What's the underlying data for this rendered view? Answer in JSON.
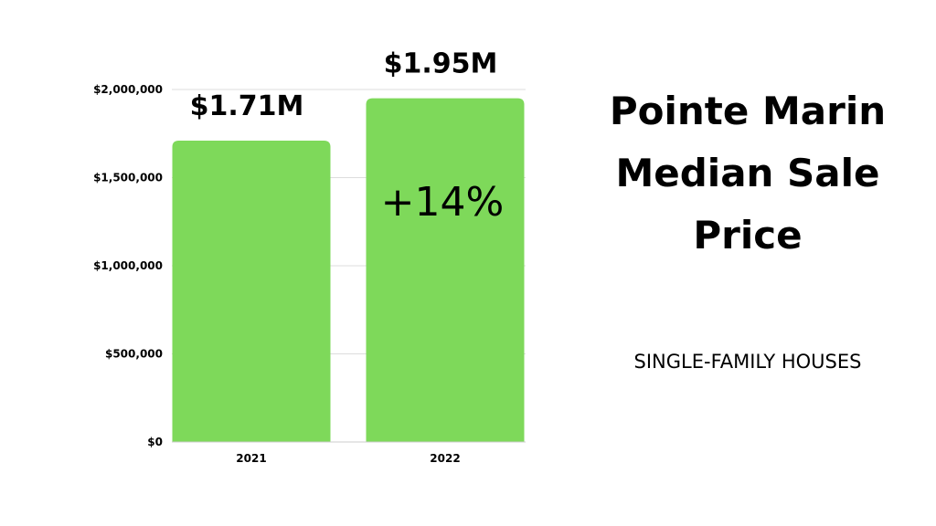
{
  "chart_data": {
    "type": "bar",
    "categories": [
      "2021",
      "2022"
    ],
    "values": [
      1710000,
      1950000
    ],
    "value_labels": [
      "$1.71M",
      "$1.95M"
    ],
    "annotation": "+14%",
    "title_lines": [
      "Pointe Marin",
      "Median Sale",
      "Price"
    ],
    "subtitle": "SINGLE-FAMILY HOUSES",
    "ylim": [
      0,
      2000000
    ],
    "yticks": [
      0,
      500000,
      1000000,
      1500000,
      2000000
    ],
    "ytick_labels": [
      "$0",
      "$500,000",
      "$1,000,000",
      "$1,500,000",
      "$2,000,000"
    ],
    "grid": true,
    "bar_color": "#7ED95A",
    "grid_color": "#DDDDDD"
  }
}
